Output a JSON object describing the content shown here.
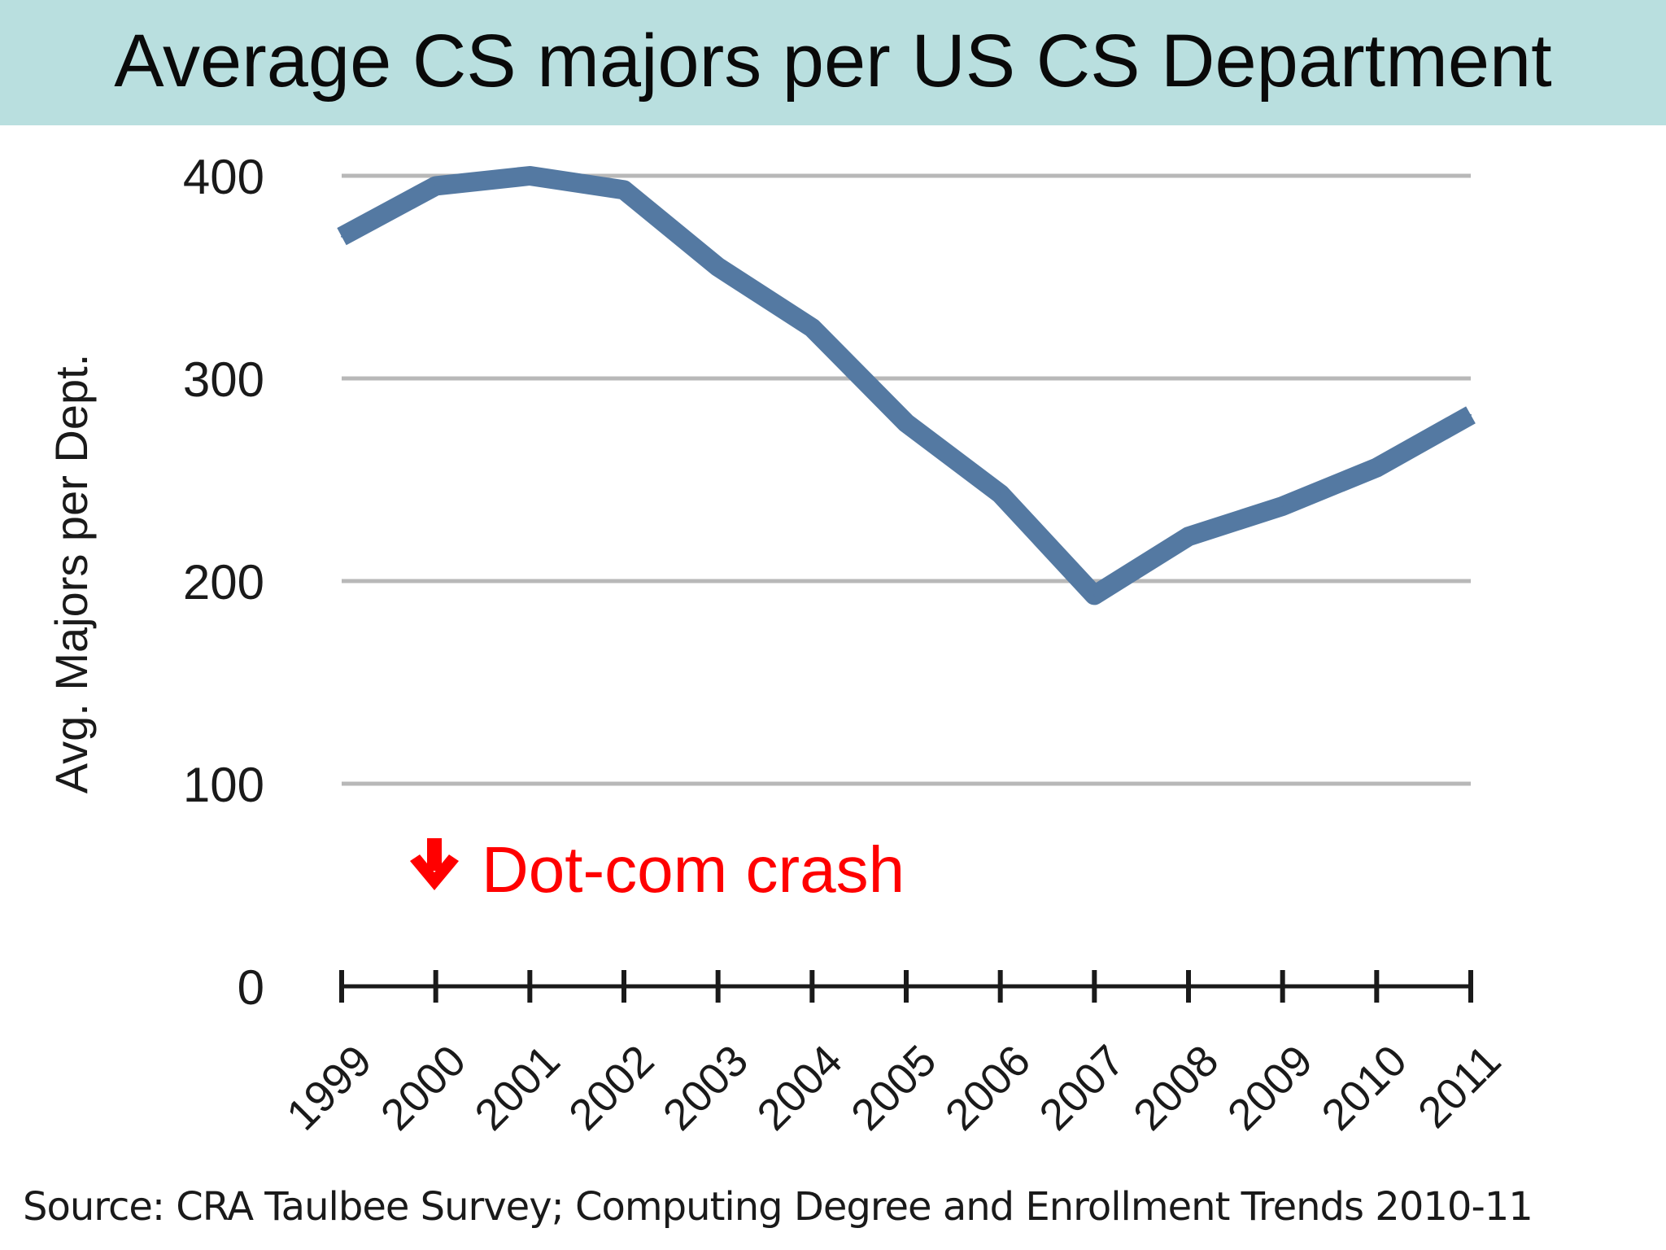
{
  "title": "Average CS majors per US CS Department",
  "source": "Source: CRA Taulbee Survey; Computing Degree and Enrollment Trends 2010-11",
  "colors": {
    "title_bg": "#b9dfdf",
    "line": "#5479a2",
    "grid": "#b8b8b8",
    "annotation": "#ff0000"
  },
  "chart_data": {
    "type": "line",
    "title": "",
    "xlabel": "",
    "ylabel": "Avg. Majors per Dept.",
    "categories": [
      "1999",
      "2000",
      "2001",
      "2002",
      "2003",
      "2004",
      "2005",
      "2006",
      "2007",
      "2008",
      "2009",
      "2010",
      "2011"
    ],
    "series": [
      {
        "values": [
          370,
          395,
          400,
          393,
          355,
          325,
          278,
          243,
          193,
          222,
          237,
          256,
          282
        ]
      }
    ],
    "ylim": [
      0,
      400
    ],
    "yticks": [
      "0",
      "100",
      "200",
      "300",
      "400"
    ],
    "grid": true,
    "annotation": {
      "icon": "arrow-down-icon",
      "text": "Dot-com crash"
    }
  }
}
